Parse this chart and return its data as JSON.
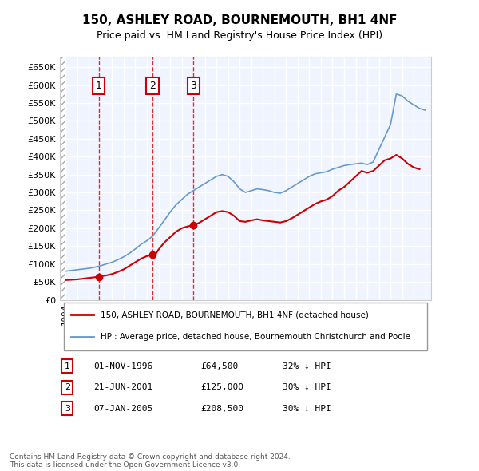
{
  "title": "150, ASHLEY ROAD, BOURNEMOUTH, BH1 4NF",
  "subtitle": "Price paid vs. HM Land Registry's House Price Index (HPI)",
  "sales": [
    {
      "date": 1996.84,
      "price": 64500,
      "label": "1"
    },
    {
      "date": 2001.47,
      "price": 125000,
      "label": "2"
    },
    {
      "date": 2005.02,
      "price": 208500,
      "label": "3"
    }
  ],
  "sale_annotations": [
    {
      "num": "1",
      "date": "01-NOV-1996",
      "price": "£64,500",
      "note": "32% ↓ HPI"
    },
    {
      "num": "2",
      "date": "21-JUN-2001",
      "price": "£125,000",
      "note": "30% ↓ HPI"
    },
    {
      "num": "3",
      "date": "07-JAN-2005",
      "price": "£208,500",
      "note": "30% ↓ HPI"
    }
  ],
  "hpi_color": "#6699cc",
  "sale_color": "#cc0000",
  "ylabel_ticks": [
    "£0",
    "£50K",
    "£100K",
    "£150K",
    "£200K",
    "£250K",
    "£300K",
    "£350K",
    "£400K",
    "£450K",
    "£500K",
    "£550K",
    "£600K",
    "£650K"
  ],
  "ytick_values": [
    0,
    50000,
    100000,
    150000,
    200000,
    250000,
    300000,
    350000,
    400000,
    450000,
    500000,
    550000,
    600000,
    650000
  ],
  "ylim": [
    0,
    680000
  ],
  "xlim_start": 1993.5,
  "xlim_end": 2025.5,
  "legend_line1": "150, ASHLEY ROAD, BOURNEMOUTH, BH1 4NF (detached house)",
  "legend_line2": "HPI: Average price, detached house, Bournemouth Christchurch and Poole",
  "footnote": "Contains HM Land Registry data © Crown copyright and database right 2024.\nThis data is licensed under the Open Government Licence v3.0.",
  "background_color": "#ffffff",
  "plot_bg_color": "#f0f4ff",
  "grid_color": "#ffffff",
  "hatch_color": "#cccccc"
}
